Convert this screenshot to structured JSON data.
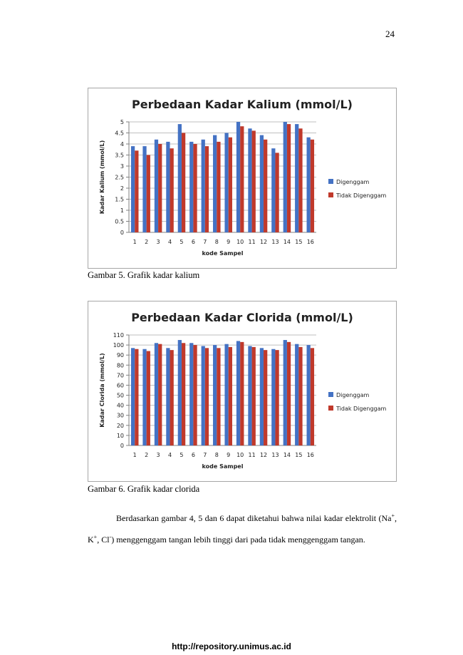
{
  "page_number": "24",
  "colors": {
    "series1": "#4472c4",
    "series2": "#c0392b",
    "grid": "#bfbfbf"
  },
  "captions": {
    "kalium": "Gambar 5. Grafik kadar kalium",
    "clorida": "Gambar 6. Grafik kadar clorida"
  },
  "paragraph": {
    "part1": "Berdasarkan gambar 4, 5 dan 6 dapat diketahui bahwa nilai kadar elektrolit (Na",
    "sup1": "+",
    "part2": ", K",
    "sup2": "+",
    "part3": ", Cl",
    "sup3": "-",
    "part4": ") menggenggam tangan lebih tinggi dari pada tidak menggenggam tangan."
  },
  "footer": {
    "url": "http://repository.unimus.ac.id"
  },
  "chart_data": [
    {
      "type": "bar",
      "title": "Perbedaan Kadar Kalium (mmol/L)",
      "xlabel": "kode Sampel",
      "ylabel": "Kadar Kalium (mmol/L)",
      "ylim": [
        0,
        5
      ],
      "yticks": [
        "0",
        "0.5",
        "1",
        "1.5",
        "2",
        "2.5",
        "3",
        "3.5",
        "4",
        "4.5",
        "5"
      ],
      "grid": true,
      "legend_position": "right",
      "categories": [
        "1",
        "2",
        "3",
        "4",
        "5",
        "6",
        "7",
        "8",
        "9",
        "10",
        "11",
        "12",
        "13",
        "14",
        "15",
        "16"
      ],
      "series": [
        {
          "name": "Digenggam",
          "values": [
            3.9,
            3.9,
            4.2,
            4.1,
            4.9,
            4.1,
            4.2,
            4.4,
            4.5,
            5.0,
            4.7,
            4.4,
            3.8,
            5.0,
            4.9,
            4.3
          ]
        },
        {
          "name": "Tidak Digenggam",
          "values": [
            3.7,
            3.5,
            4.0,
            3.8,
            4.5,
            4.0,
            3.9,
            4.1,
            4.3,
            4.8,
            4.6,
            4.2,
            3.6,
            4.9,
            4.7,
            4.2
          ]
        }
      ]
    },
    {
      "type": "bar",
      "title": "Perbedaan Kadar Clorida (mmol/L)",
      "xlabel": "kode Sampel",
      "ylabel": "Kadar Clorida (mmol/L)",
      "ylim": [
        0,
        110
      ],
      "yticks": [
        "0",
        "10",
        "20",
        "30",
        "40",
        "50",
        "60",
        "70",
        "80",
        "90",
        "100",
        "110"
      ],
      "grid": true,
      "legend_position": "right",
      "categories": [
        "1",
        "2",
        "3",
        "4",
        "5",
        "6",
        "7",
        "8",
        "9",
        "10",
        "11",
        "12",
        "13",
        "14",
        "15",
        "16"
      ],
      "series": [
        {
          "name": "Digenggam",
          "values": [
            97,
            96,
            102,
            97,
            105,
            102,
            99,
            100,
            101,
            104,
            99,
            97,
            96,
            105,
            101,
            100
          ]
        },
        {
          "name": "Tidak Digenggam",
          "values": [
            96,
            94,
            101,
            95,
            102,
            100,
            97,
            97,
            98,
            103,
            98,
            95,
            95,
            103,
            98,
            97
          ]
        }
      ]
    }
  ]
}
